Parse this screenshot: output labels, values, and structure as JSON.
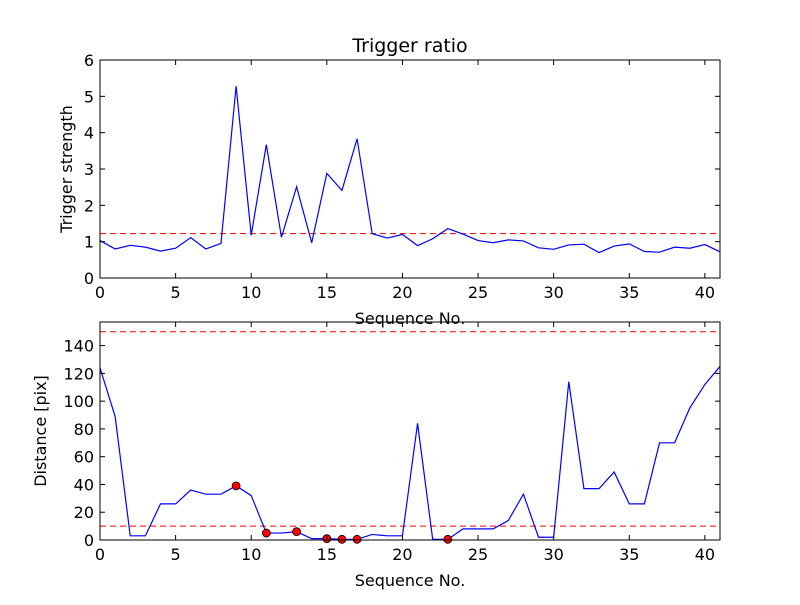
{
  "chart_data": [
    {
      "type": "line",
      "title": "Trigger ratio",
      "xlabel": "Sequence No.",
      "ylabel": "Trigger strength",
      "xlim": [
        0,
        41
      ],
      "ylim": [
        0,
        6
      ],
      "xticks": [
        0,
        5,
        10,
        15,
        20,
        25,
        30,
        35,
        40
      ],
      "yticks": [
        0,
        1,
        2,
        3,
        4,
        5,
        6
      ],
      "grid": false,
      "line_color": "#0000ff",
      "threshold_color": "#ff0000",
      "thresholds": [
        1.22
      ],
      "x": [
        0,
        1,
        2,
        3,
        4,
        5,
        6,
        7,
        8,
        9,
        10,
        11,
        12,
        13,
        14,
        15,
        16,
        17,
        18,
        19,
        20,
        21,
        22,
        23,
        24,
        25,
        26,
        27,
        28,
        29,
        30,
        31,
        32,
        33,
        34,
        35,
        36,
        37,
        38,
        39,
        40,
        41
      ],
      "series": [
        {
          "values": [
            1.03,
            0.8,
            0.9,
            0.85,
            0.74,
            0.82,
            1.11,
            0.8,
            0.95,
            5.28,
            1.18,
            3.67,
            1.12,
            2.51,
            0.97,
            2.88,
            2.41,
            3.83,
            1.22,
            1.1,
            1.2,
            0.89,
            1.08,
            1.36,
            1.21,
            1.03,
            0.97,
            1.05,
            1.02,
            0.83,
            0.79,
            0.91,
            0.93,
            0.7,
            0.88,
            0.94,
            0.73,
            0.71,
            0.85,
            0.82,
            0.92,
            0.72
          ]
        }
      ]
    },
    {
      "type": "line",
      "title": "",
      "xlabel": "Sequence No.",
      "ylabel": "Distance [pix]",
      "xlim": [
        0,
        41
      ],
      "ylim": [
        0,
        157
      ],
      "xticks": [
        0,
        5,
        10,
        15,
        20,
        25,
        30,
        35,
        40
      ],
      "yticks": [
        0,
        20,
        40,
        60,
        80,
        100,
        120,
        140
      ],
      "grid": false,
      "line_color": "#0000ff",
      "threshold_color": "#ff0000",
      "marker_color": "#ff0000",
      "thresholds": [
        150,
        10
      ],
      "x": [
        0,
        1,
        2,
        3,
        4,
        5,
        6,
        7,
        8,
        9,
        10,
        11,
        12,
        13,
        14,
        15,
        16,
        17,
        18,
        19,
        20,
        21,
        22,
        23,
        24,
        25,
        26,
        27,
        28,
        29,
        30,
        31,
        32,
        33,
        34,
        35,
        36,
        37,
        38,
        39,
        40,
        41
      ],
      "series": [
        {
          "values": [
            124,
            89,
            3,
            3,
            26,
            26,
            36,
            33,
            33,
            39,
            32,
            5,
            5,
            6,
            1,
            1,
            0.5,
            0.5,
            4,
            3,
            3,
            84,
            0.5,
            0.5,
            8,
            8,
            8,
            14,
            33,
            2,
            2,
            114,
            37,
            37,
            49,
            26,
            26,
            70,
            70,
            95,
            112,
            125
          ]
        }
      ],
      "markers": {
        "x": [
          9,
          11,
          13,
          15,
          16,
          17,
          23
        ],
        "y": [
          39,
          5,
          6,
          1,
          0.5,
          0.5,
          0.5
        ]
      }
    }
  ]
}
